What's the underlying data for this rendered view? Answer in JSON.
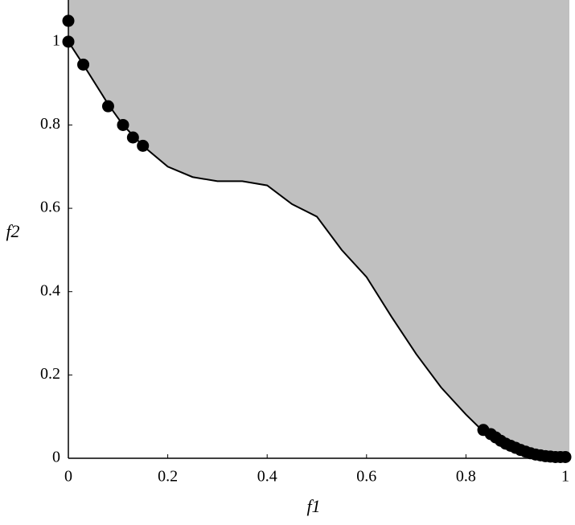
{
  "chart_data": {
    "type": "scatter",
    "x_label": "f1",
    "y_label": "f2",
    "xlim": [
      0,
      1
    ],
    "ylim": [
      0,
      1.1
    ],
    "xticks": [
      0,
      0.2,
      0.4,
      0.6,
      0.8,
      1
    ],
    "yticks": [
      0,
      0.2,
      0.4,
      0.6,
      0.8,
      1
    ],
    "fill_color": "#c0c0c0",
    "curve": {
      "color": "#000000",
      "x": [
        0,
        0.03,
        0.08,
        0.11,
        0.15,
        0.2,
        0.25,
        0.3,
        0.35,
        0.4,
        0.45,
        0.5,
        0.55,
        0.6,
        0.65,
        0.7,
        0.75,
        0.8,
        0.83,
        0.85,
        0.9,
        0.95,
        1
      ],
      "y": [
        1,
        0.945,
        0.85,
        0.8,
        0.75,
        0.7,
        0.675,
        0.665,
        0.665,
        0.655,
        0.61,
        0.58,
        0.5,
        0.435,
        0.34,
        0.25,
        0.17,
        0.105,
        0.07,
        0.05,
        0.025,
        0.008,
        0.003
      ]
    },
    "points": {
      "color": "#000000",
      "x": [
        0,
        0,
        0.03,
        0.08,
        0.11,
        0.13,
        0.15,
        0.835,
        0.85,
        0.86,
        0.87,
        0.88,
        0.89,
        0.9,
        0.91,
        0.92,
        0.93,
        0.94,
        0.95,
        0.96,
        0.97,
        0.98,
        0.99,
        1
      ],
      "y": [
        1.05,
        1,
        0.945,
        0.845,
        0.8,
        0.77,
        0.75,
        0.068,
        0.058,
        0.05,
        0.042,
        0.035,
        0.03,
        0.025,
        0.02,
        0.016,
        0.012,
        0.009,
        0.007,
        0.005,
        0.004,
        0.003,
        0.003,
        0.003
      ]
    }
  }
}
